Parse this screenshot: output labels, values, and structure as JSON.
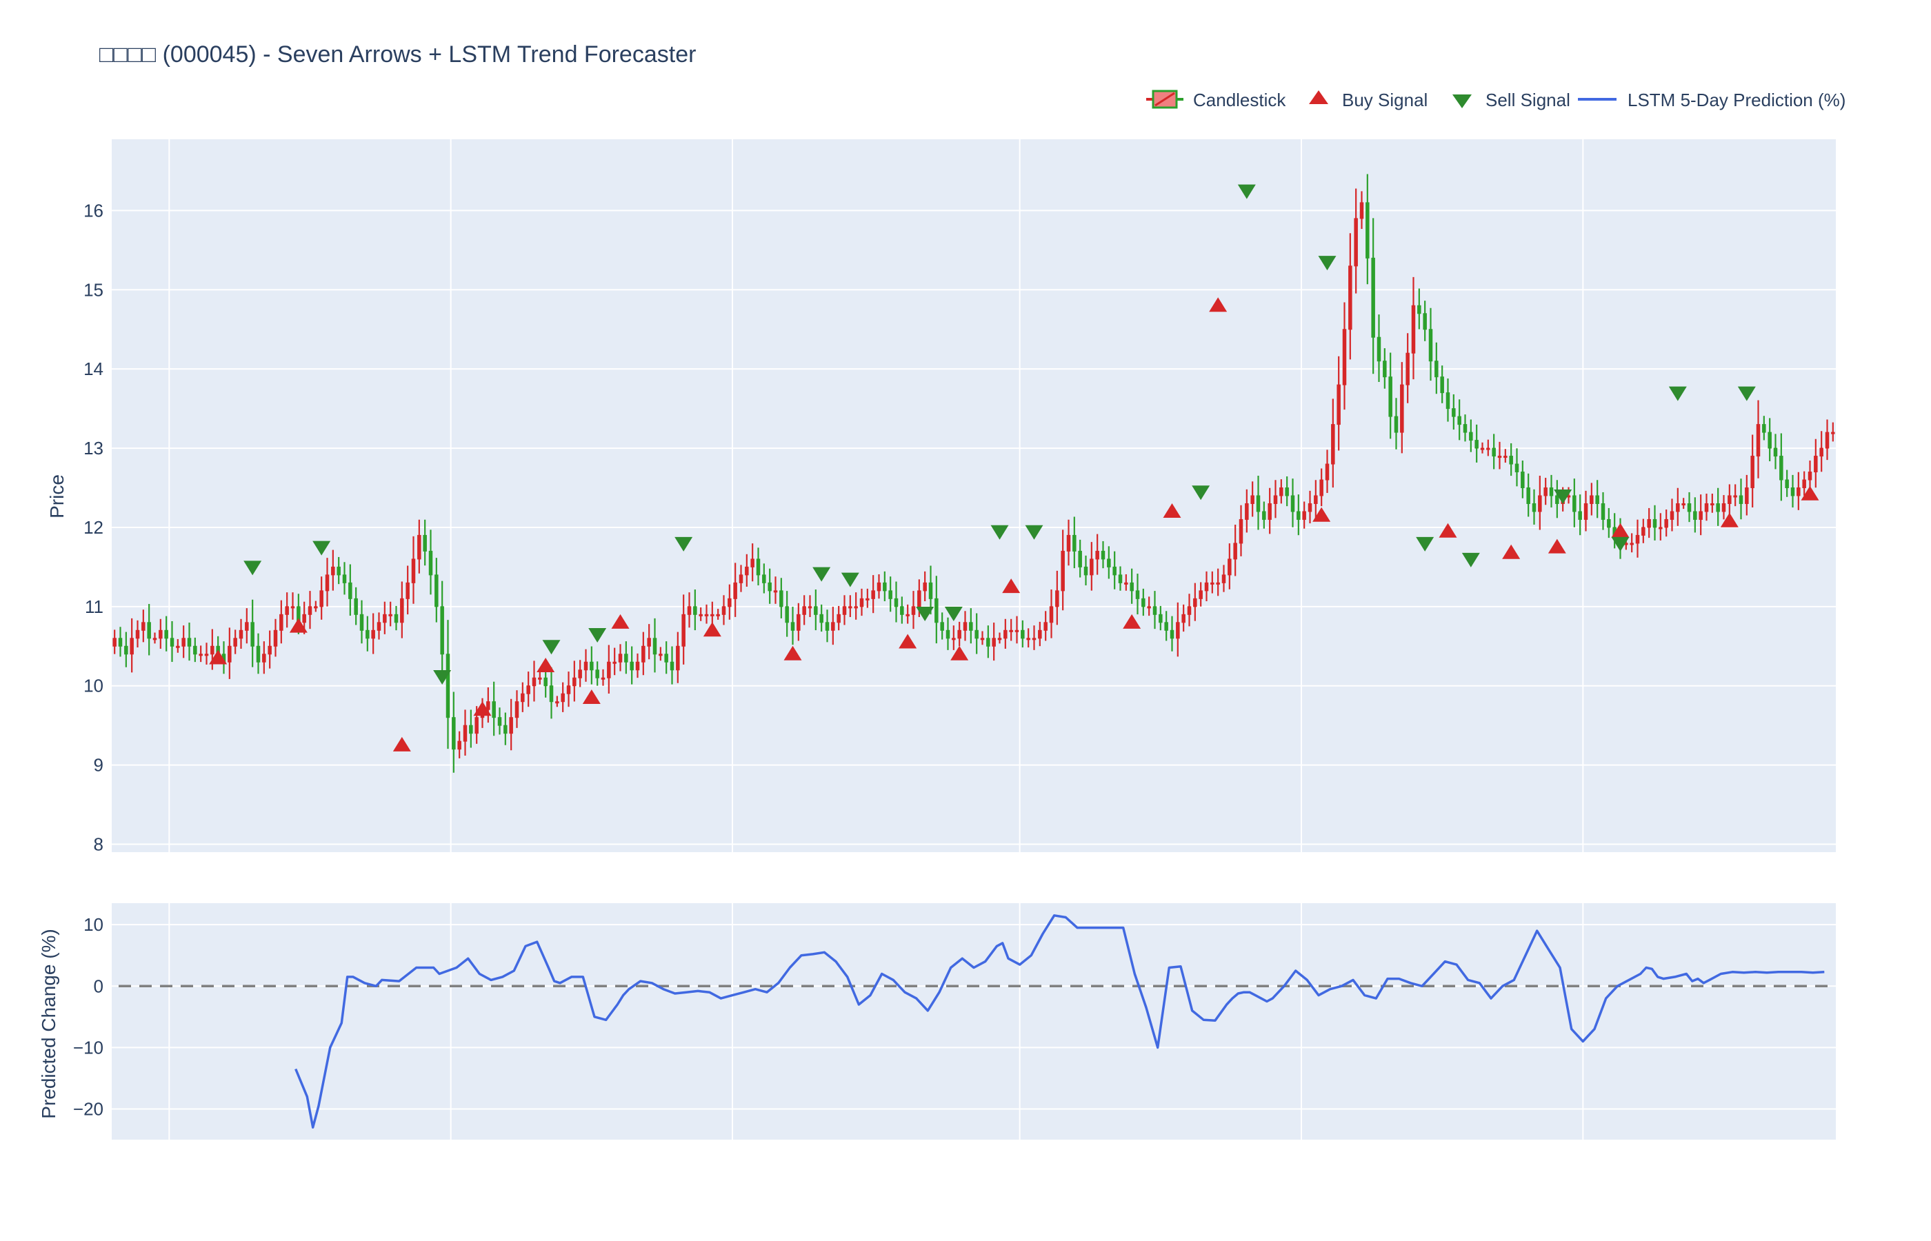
{
  "title": "□□□□ (000045) - Seven Arrows + LSTM Trend Forecaster",
  "legend": {
    "placement": "top-right, horizontal",
    "items": [
      {
        "key": "candle",
        "label": "Candlestick"
      },
      {
        "key": "buy",
        "label": "Buy Signal"
      },
      {
        "key": "sell",
        "label": "Sell Signal"
      },
      {
        "key": "lstm",
        "label": "LSTM 5-Day Prediction (%)"
      }
    ]
  },
  "colors": {
    "plot_bg": "#e5ecf6",
    "grid": "#ffffff",
    "up": "#d62728",
    "down": "#2ca02c",
    "up_fill": "#f08080",
    "buy": "#d62728",
    "sell": "#2e8b2e",
    "lstm": "#4169e1",
    "zero_line": "#808080"
  },
  "chart_data": [
    {
      "type": "candlestick",
      "ylabel": "Price",
      "ylim": [
        7.9,
        16.9
      ],
      "yticks": [
        8,
        9,
        10,
        11,
        12,
        13,
        14,
        15,
        16
      ],
      "xlim": [
        0,
        300
      ],
      "grid": true,
      "x_gridlines_at": [
        10,
        59,
        108,
        158,
        207,
        256
      ],
      "x_tick_labels": [],
      "series": [
        {
          "name": "Candlestick",
          "close": [
            10.6,
            10.5,
            10.4,
            10.6,
            10.7,
            10.8,
            10.6,
            10.6,
            10.7,
            10.6,
            10.5,
            10.5,
            10.6,
            10.5,
            10.4,
            10.4,
            10.4,
            10.5,
            10.4,
            10.3,
            10.5,
            10.6,
            10.7,
            10.8,
            10.5,
            10.3,
            10.4,
            10.5,
            10.7,
            10.9,
            11.0,
            11.0,
            10.8,
            10.9,
            11.0,
            11.0,
            11.2,
            11.4,
            11.5,
            11.4,
            11.3,
            11.1,
            10.9,
            10.7,
            10.6,
            10.7,
            10.8,
            10.9,
            10.9,
            10.8,
            11.1,
            11.3,
            11.6,
            11.9,
            11.7,
            11.4,
            11.0,
            10.4,
            9.6,
            9.2,
            9.3,
            9.5,
            9.4,
            9.6,
            9.7,
            9.8,
            9.6,
            9.5,
            9.4,
            9.6,
            9.8,
            9.9,
            10.0,
            10.1,
            10.1,
            10.0,
            9.8,
            9.8,
            9.9,
            10.0,
            10.1,
            10.2,
            10.3,
            10.2,
            10.1,
            10.1,
            10.3,
            10.3,
            10.4,
            10.3,
            10.2,
            10.3,
            10.5,
            10.6,
            10.4,
            10.4,
            10.3,
            10.2,
            10.5,
            10.9,
            11.0,
            10.9,
            10.9,
            10.9,
            10.9,
            10.9,
            11.0,
            11.1,
            11.3,
            11.4,
            11.5,
            11.6,
            11.4,
            11.3,
            11.2,
            11.2,
            11.0,
            10.8,
            10.7,
            10.9,
            11.0,
            11.0,
            10.9,
            10.8,
            10.7,
            10.8,
            10.9,
            11.0,
            11.0,
            11.0,
            11.1,
            11.1,
            11.2,
            11.3,
            11.2,
            11.1,
            11.0,
            10.9,
            10.9,
            11.0,
            11.2,
            11.3,
            11.1,
            10.8,
            10.7,
            10.6,
            10.6,
            10.7,
            10.8,
            10.7,
            10.6,
            10.6,
            10.5,
            10.6,
            10.6,
            10.7,
            10.7,
            10.7,
            10.6,
            10.6,
            10.6,
            10.7,
            10.8,
            11.0,
            11.2,
            11.7,
            11.9,
            11.7,
            11.5,
            11.4,
            11.6,
            11.7,
            11.6,
            11.5,
            11.4,
            11.3,
            11.3,
            11.2,
            11.1,
            11.0,
            11.0,
            10.9,
            10.8,
            10.7,
            10.6,
            10.8,
            10.9,
            11.0,
            11.1,
            11.2,
            11.3,
            11.3,
            11.3,
            11.4,
            11.6,
            11.8,
            12.1,
            12.3,
            12.4,
            12.2,
            12.1,
            12.3,
            12.4,
            12.5,
            12.4,
            12.2,
            12.1,
            12.2,
            12.3,
            12.4,
            12.6,
            12.8,
            13.3,
            13.8,
            14.5,
            15.3,
            15.9,
            16.1,
            15.4,
            14.4,
            14.1,
            13.9,
            13.4,
            13.2,
            13.8,
            14.2,
            14.8,
            14.7,
            14.5,
            14.1,
            13.9,
            13.7,
            13.5,
            13.4,
            13.3,
            13.2,
            13.1,
            13.0,
            13.0,
            13.0,
            12.9,
            12.9,
            12.9,
            12.8,
            12.7,
            12.5,
            12.3,
            12.2,
            12.4,
            12.5,
            12.4,
            12.3,
            12.4,
            12.4,
            12.2,
            12.1,
            12.3,
            12.4,
            12.3,
            12.1,
            12.0,
            11.9,
            11.8,
            11.8,
            11.8,
            11.9,
            12.0,
            12.1,
            12.0,
            12.0,
            12.1,
            12.2,
            12.3,
            12.3,
            12.2,
            12.1,
            12.2,
            12.3,
            12.3,
            12.2,
            12.3,
            12.4,
            12.4,
            12.3,
            12.5,
            12.9,
            13.3,
            13.2,
            13.0,
            12.9,
            12.6,
            12.5,
            12.4,
            12.5,
            12.6,
            12.7,
            12.9,
            13.0,
            13.2,
            13.2
          ]
        }
      ],
      "markers": [
        {
          "name": "Buy Signal",
          "shape": "triangle-up",
          "x": [
            18,
            32,
            50,
            64,
            75,
            83,
            88,
            104,
            118,
            138,
            147,
            156,
            177,
            184,
            192,
            210,
            232,
            243,
            251,
            262,
            281,
            295
          ],
          "y": [
            10.35,
            10.75,
            9.25,
            9.7,
            10.25,
            9.85,
            10.8,
            10.7,
            10.4,
            10.55,
            10.4,
            11.25,
            10.8,
            12.2,
            14.8,
            12.15,
            11.95,
            11.68,
            11.75,
            11.95,
            12.08,
            12.42
          ]
        },
        {
          "name": "Sell Signal",
          "shape": "triangle-down",
          "x": [
            24,
            36,
            57,
            76,
            84,
            99,
            123,
            128,
            141,
            146,
            154,
            160,
            189,
            197,
            211,
            228,
            236,
            252,
            262,
            272,
            284
          ],
          "y": [
            11.5,
            11.75,
            10.12,
            10.5,
            10.65,
            11.8,
            11.42,
            11.35,
            10.92,
            10.92,
            11.95,
            11.95,
            12.45,
            16.25,
            15.35,
            11.8,
            11.6,
            12.4,
            11.8,
            13.7,
            13.7
          ]
        }
      ]
    },
    {
      "type": "line",
      "name": "LSTM 5-Day Prediction (%)",
      "ylabel": "Predicted Change (%)",
      "ylim": [
        -25,
        13.5
      ],
      "yticks": [
        10,
        0,
        -10,
        -20
      ],
      "ytick_labels": [
        "10",
        "0",
        "−10",
        "−20"
      ],
      "xlim": [
        0,
        300
      ],
      "grid": true,
      "zero_line": {
        "y": 0,
        "style": "dashed"
      },
      "x": [
        32,
        34,
        35,
        36,
        38,
        40,
        41,
        42,
        44,
        46,
        47,
        50,
        53,
        56,
        57,
        60,
        62,
        64,
        66,
        68,
        70,
        72,
        74,
        76,
        77,
        78,
        80,
        82,
        84,
        86,
        88,
        89,
        90,
        92,
        94,
        96,
        98,
        100,
        102,
        104,
        106,
        108,
        110,
        112,
        114,
        116,
        118,
        120,
        122,
        124,
        126,
        128,
        130,
        132,
        134,
        136,
        138,
        140,
        142,
        144,
        145,
        146,
        148,
        150,
        152,
        154,
        155,
        156,
        158,
        160,
        162,
        164,
        166,
        168,
        170,
        172,
        174,
        176,
        178,
        180,
        182,
        184,
        186,
        188,
        190,
        192,
        194,
        195,
        196,
        197,
        198,
        199,
        200,
        201,
        202,
        204,
        206,
        208,
        210,
        212,
        214,
        216,
        218,
        220,
        222,
        224,
        226,
        228,
        230,
        232,
        234,
        236,
        238,
        240,
        242,
        244,
        246,
        248,
        250,
        252,
        254,
        256,
        258,
        260,
        262,
        264,
        266,
        267,
        268,
        269,
        270,
        272,
        274,
        275,
        276,
        277,
        278,
        280,
        282,
        284,
        286,
        288,
        290,
        292,
        294,
        296,
        298
      ],
      "y": [
        -13.5,
        -18,
        -23,
        -19.5,
        -10,
        -6,
        1.5,
        1.5,
        0.5,
        0,
        1,
        0.8,
        3,
        3,
        2,
        3,
        4.5,
        2,
        1,
        1.5,
        2.5,
        6.5,
        7.2,
        3,
        0.8,
        0.5,
        1.5,
        1.5,
        -5,
        -5.5,
        -3,
        -1.5,
        -0.5,
        0.8,
        0.5,
        -0.5,
        -1.2,
        -1,
        -0.8,
        -1,
        -2,
        -1.5,
        -1,
        -0.5,
        -1,
        0.5,
        3,
        5,
        5.2,
        5.5,
        4,
        1.5,
        -3,
        -1.5,
        2,
        1,
        -1,
        -2,
        -4,
        -1,
        1,
        3,
        4.5,
        3,
        4,
        6.5,
        7,
        4.5,
        3.5,
        5,
        8.5,
        11.5,
        11.2,
        9.5,
        9.5,
        9.5,
        9.5,
        9.5,
        2,
        -3.5,
        -10,
        3,
        3.2,
        -4,
        -5.5,
        -5.6,
        -3,
        -2,
        -1.2,
        -1,
        -1,
        -1.5,
        -2,
        -2.5,
        -2,
        0,
        2.5,
        1,
        -1.5,
        -0.5,
        0,
        1,
        -1.5,
        -2,
        1.2,
        1.2,
        0.5,
        0,
        2,
        4,
        3.5,
        1,
        0.5,
        -2,
        0,
        1,
        5,
        9,
        6,
        3,
        -7,
        -9,
        -7,
        -2,
        0,
        1,
        2,
        3,
        2.8,
        1.5,
        1.2,
        1.5,
        2,
        0.8,
        1.2,
        0.5,
        1,
        2,
        2.3,
        2.2,
        2.3,
        2.2,
        2.3,
        2.3,
        2.3,
        2.2,
        2.3
      ]
    }
  ]
}
